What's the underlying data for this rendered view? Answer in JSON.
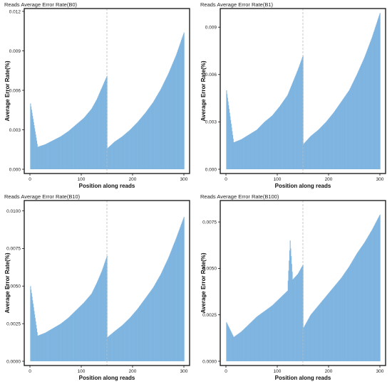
{
  "chart_data": [
    {
      "type": "bar",
      "title": "Reads Average Error Rate(B0)",
      "xlabel": "Position along reads",
      "ylabel": "Average Error Rate(%)",
      "xlim": [
        0,
        300
      ],
      "ylim": [
        0,
        0.012
      ],
      "xticks": [
        "0",
        "100",
        "200",
        "300"
      ],
      "yticks": [
        "0.000",
        "0.003",
        "0.006",
        "0.009",
        "0.012"
      ],
      "bar_color": "#7fb5e0",
      "read_boundary": 150,
      "x": [
        1,
        15,
        30,
        45,
        60,
        75,
        90,
        105,
        120,
        130,
        140,
        150,
        151,
        165,
        180,
        195,
        210,
        225,
        240,
        255,
        270,
        285,
        300
      ],
      "values": [
        0.005,
        0.0017,
        0.0019,
        0.0022,
        0.0025,
        0.0029,
        0.0034,
        0.0039,
        0.0046,
        0.0053,
        0.0062,
        0.0071,
        0.0016,
        0.0021,
        0.0025,
        0.003,
        0.0036,
        0.0043,
        0.0051,
        0.0061,
        0.0073,
        0.0087,
        0.0104
      ]
    },
    {
      "type": "bar",
      "title": "Reads Average Error Rate(B1)",
      "xlabel": "Position along reads",
      "ylabel": "Average Error Rate(%)",
      "xlim": [
        0,
        300
      ],
      "ylim": [
        0,
        0.01
      ],
      "xticks": [
        "0",
        "100",
        "200",
        "300"
      ],
      "yticks": [
        "0.000",
        "0.003",
        "0.006",
        "0.009"
      ],
      "bar_color": "#7fb5e0",
      "read_boundary": 150,
      "x": [
        1,
        15,
        30,
        45,
        60,
        75,
        90,
        105,
        120,
        130,
        140,
        150,
        151,
        165,
        180,
        195,
        210,
        225,
        240,
        255,
        270,
        285,
        300
      ],
      "values": [
        0.005,
        0.0017,
        0.0019,
        0.0022,
        0.0025,
        0.003,
        0.0034,
        0.004,
        0.0047,
        0.0055,
        0.0063,
        0.0072,
        0.0016,
        0.0021,
        0.0025,
        0.003,
        0.0036,
        0.0043,
        0.005,
        0.006,
        0.0071,
        0.0084,
        0.0099
      ]
    },
    {
      "type": "bar",
      "title": "Reads Average Error Rate(B10)",
      "xlabel": "Position along reads",
      "ylabel": "Average Error Rate(%)",
      "xlim": [
        0,
        300
      ],
      "ylim": [
        0,
        0.0105
      ],
      "xticks": [
        "0",
        "100",
        "200",
        "300"
      ],
      "yticks": [
        "0.0000",
        "0.0025",
        "0.0050",
        "0.0075",
        "0.0100"
      ],
      "bar_color": "#7fb5e0",
      "read_boundary": 150,
      "x": [
        1,
        15,
        30,
        45,
        60,
        75,
        90,
        105,
        120,
        130,
        140,
        150,
        151,
        165,
        180,
        195,
        210,
        225,
        240,
        255,
        270,
        285,
        300
      ],
      "values": [
        0.005,
        0.0017,
        0.0019,
        0.0022,
        0.0025,
        0.0029,
        0.0034,
        0.0039,
        0.0045,
        0.0052,
        0.006,
        0.007,
        0.0016,
        0.002,
        0.0024,
        0.0029,
        0.0035,
        0.0042,
        0.0049,
        0.0058,
        0.0069,
        0.0082,
        0.0096
      ]
    },
    {
      "type": "bar",
      "title": "Reads Average Error Rate(B100)",
      "xlabel": "Position along reads",
      "ylabel": "Average Error Rate(%)",
      "xlim": [
        0,
        300
      ],
      "ylim": [
        0,
        0.0085
      ],
      "xticks": [
        "0",
        "100",
        "200",
        "300"
      ],
      "yticks": [
        "0.0000",
        "0.0025",
        "0.0050",
        "0.0075"
      ],
      "bar_color": "#7fb5e0",
      "read_boundary": 150,
      "x": [
        1,
        15,
        30,
        45,
        60,
        75,
        90,
        105,
        120,
        125,
        130,
        140,
        150,
        151,
        165,
        180,
        195,
        210,
        225,
        240,
        255,
        270,
        285,
        300
      ],
      "values": [
        0.0021,
        0.0013,
        0.0016,
        0.002,
        0.0024,
        0.0027,
        0.003,
        0.0034,
        0.0038,
        0.0065,
        0.0044,
        0.0047,
        0.0052,
        0.0018,
        0.0025,
        0.003,
        0.0035,
        0.004,
        0.0045,
        0.0051,
        0.0058,
        0.0064,
        0.0071,
        0.0079
      ]
    }
  ]
}
